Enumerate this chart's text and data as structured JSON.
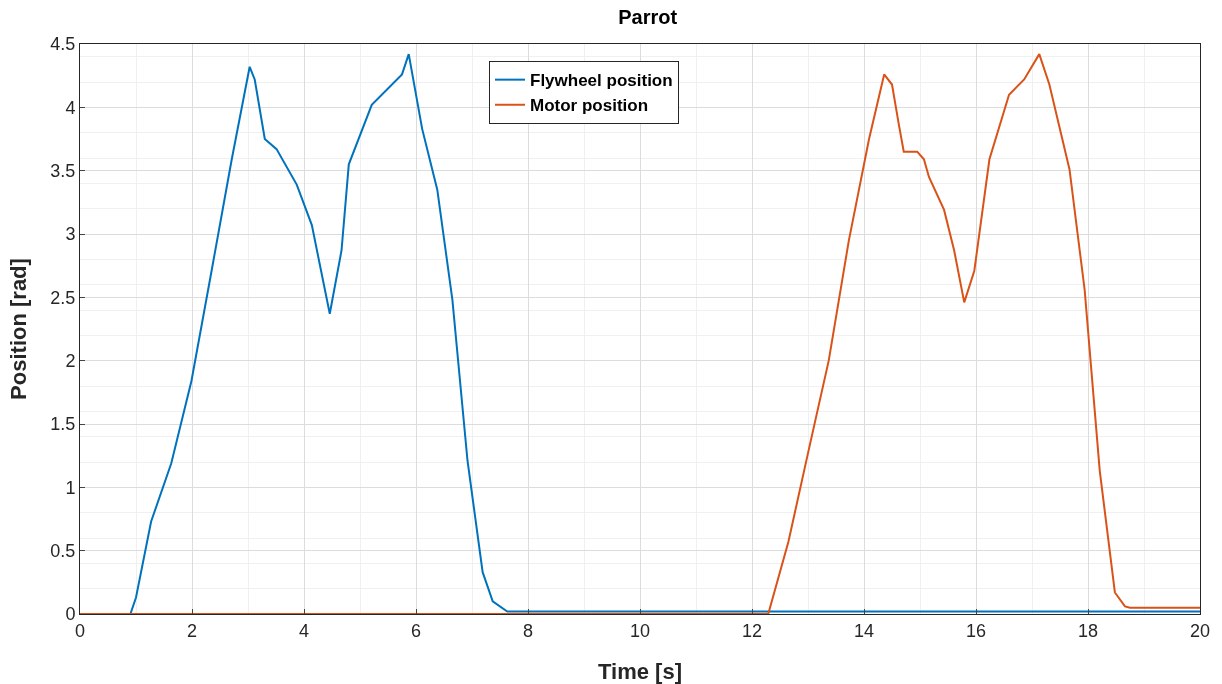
{
  "chart_data": {
    "type": "line",
    "title": "Parrot",
    "xlabel": "Time [s]",
    "ylabel": "Position [rad]",
    "xlim": [
      0,
      20
    ],
    "xticks": [
      0,
      2,
      4,
      6,
      8,
      10,
      12,
      14,
      16,
      18,
      20
    ],
    "ylim": [
      0,
      4.5
    ],
    "yticks": [
      0,
      0.5,
      1,
      1.5,
      2,
      2.5,
      3,
      3.5,
      4,
      4.5
    ],
    "grid": true,
    "legend": "top",
    "line_style": "solid",
    "marker": "none",
    "series": [
      {
        "name": "Flywheel position",
        "color": "#0072bd",
        "x": [
          0,
          0.9,
          1.0,
          1.27,
          1.63,
          1.99,
          2.35,
          2.71,
          3.03,
          3.12,
          3.3,
          3.51,
          3.87,
          4.14,
          4.46,
          4.67,
          4.8,
          5.21,
          5.75,
          5.87,
          6.11,
          6.38,
          6.65,
          6.92,
          7.19,
          7.37,
          7.63,
          20
        ],
        "values": [
          0,
          0,
          0.13,
          0.73,
          1.19,
          1.84,
          2.71,
          3.59,
          4.32,
          4.22,
          3.75,
          3.67,
          3.39,
          3.07,
          2.37,
          2.87,
          3.55,
          4.02,
          4.26,
          4.42,
          3.83,
          3.35,
          2.48,
          1.21,
          0.33,
          0.1,
          0.02,
          0.02
        ]
      },
      {
        "name": "Motor position",
        "color": "#d95319",
        "x": [
          0,
          12.29,
          12.65,
          13.01,
          13.37,
          13.73,
          14.09,
          14.36,
          14.5,
          14.62,
          14.71,
          14.95,
          15.07,
          15.16,
          15.43,
          15.61,
          15.79,
          15.97,
          16.24,
          16.59,
          16.86,
          17.13,
          17.31,
          17.67,
          17.94,
          18.21,
          18.48,
          18.66,
          18.75,
          20
        ],
        "values": [
          0,
          0,
          0.57,
          1.29,
          2.0,
          2.95,
          3.75,
          4.26,
          4.18,
          3.87,
          3.65,
          3.65,
          3.59,
          3.45,
          3.19,
          2.87,
          2.46,
          2.71,
          3.59,
          4.1,
          4.22,
          4.42,
          4.18,
          3.51,
          2.56,
          1.13,
          0.17,
          0.06,
          0.05,
          0.05
        ]
      }
    ]
  }
}
